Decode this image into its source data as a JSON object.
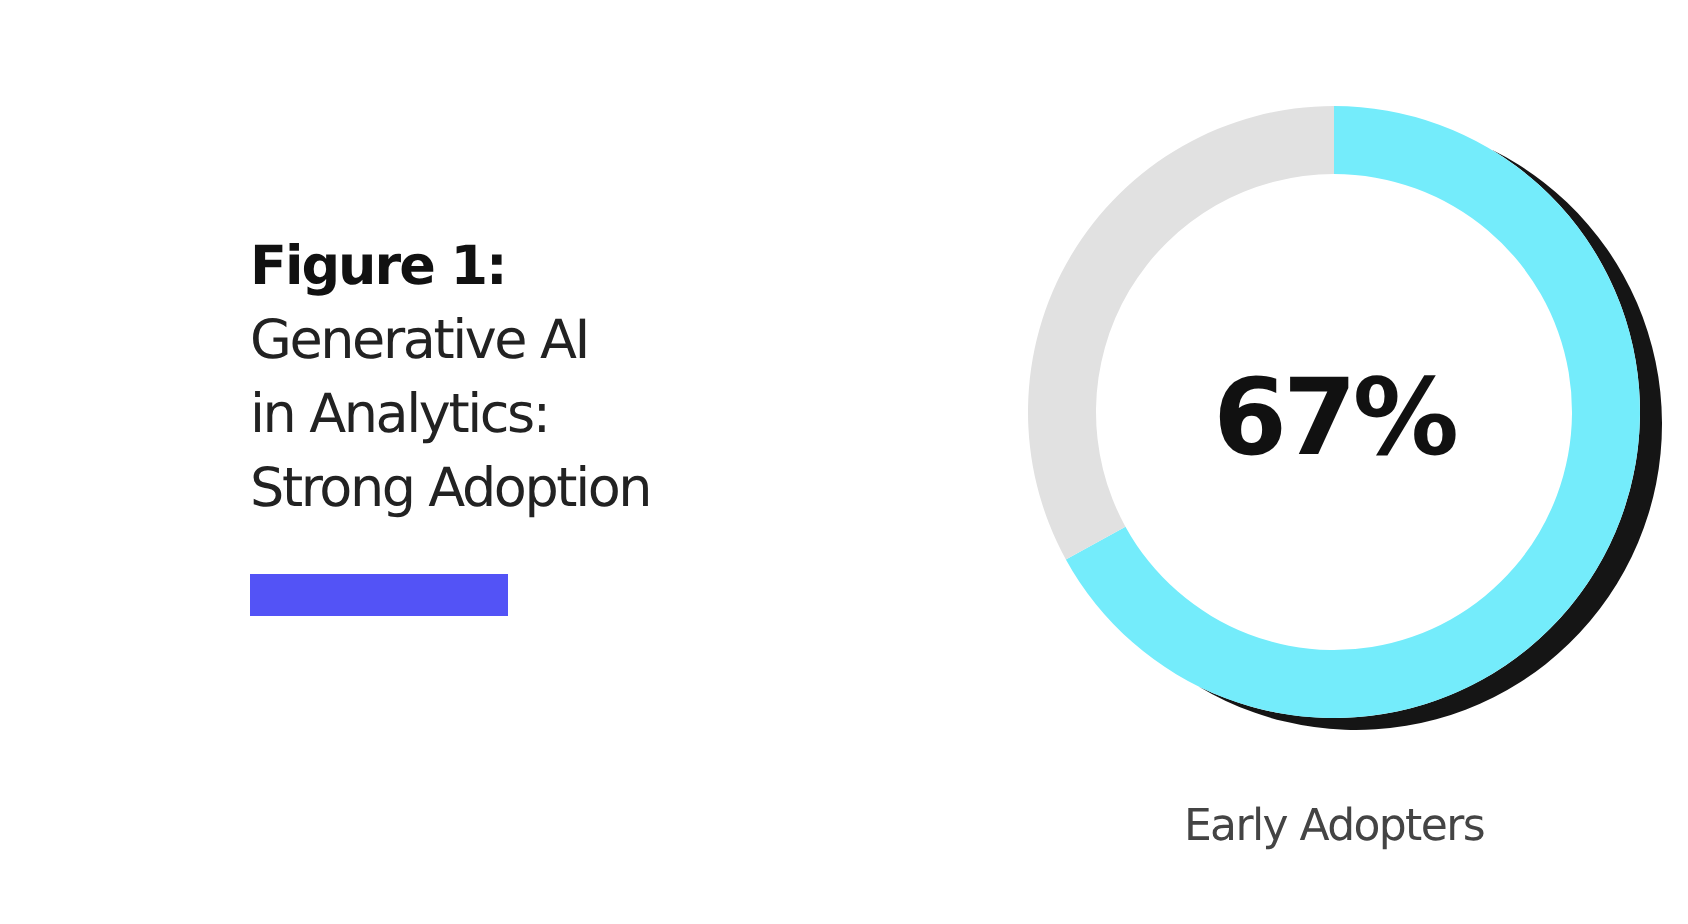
{
  "chart_data": {
    "type": "donut",
    "title": "Figure 1:",
    "subtitle": "Generative AI in Analytics: Strong Adoption",
    "categories": [
      "Early Adopters",
      null
    ],
    "values": [
      67,
      33
    ],
    "colors": [
      "#74ecfb",
      "#e1e1e1"
    ],
    "value_labels": [
      "67%",
      null
    ]
  }
}
